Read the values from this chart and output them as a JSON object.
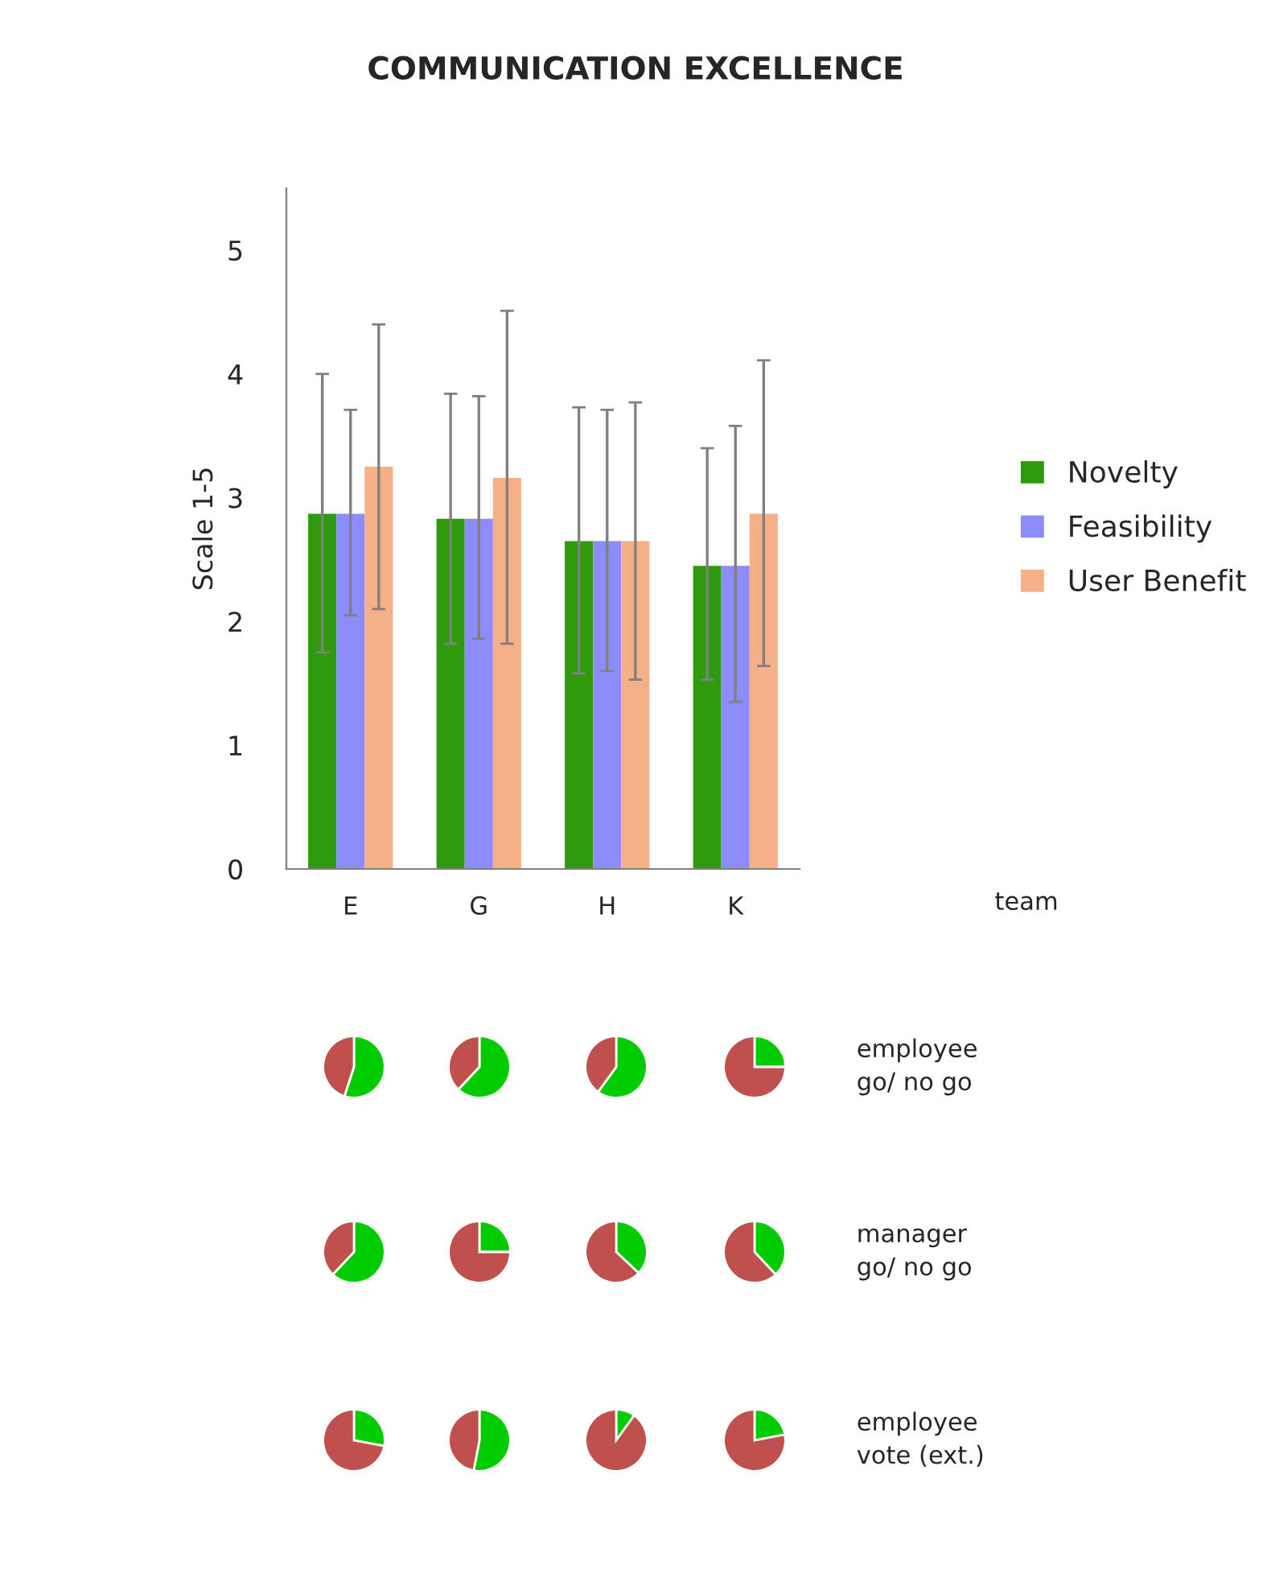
{
  "chart_data": [
    {
      "type": "bar",
      "title": "COMMUNICATION EXCELLENCE",
      "ylabel": "Scale 1-5",
      "categories": [
        "E",
        "G",
        "H",
        "K"
      ],
      "ylim": [
        0,
        5.5
      ],
      "yticks": [
        0,
        1,
        2,
        3,
        4,
        5
      ],
      "legend": "right",
      "grid": false,
      "annotations": [
        "team"
      ],
      "series": [
        {
          "name": "Novelty",
          "color": "#2e9a0c",
          "values": [
            2.87,
            2.83,
            2.65,
            2.45
          ],
          "errors": [
            [
              1.75,
              4.0
            ],
            [
              1.82,
              3.84
            ],
            [
              1.58,
              3.73
            ],
            [
              1.53,
              3.4
            ]
          ]
        },
        {
          "name": "Feasibility",
          "color": "#8c8cfc",
          "values": [
            2.87,
            2.83,
            2.65,
            2.45
          ],
          "errors": [
            [
              2.05,
              3.71
            ],
            [
              1.86,
              3.82
            ],
            [
              1.6,
              3.71
            ],
            [
              1.35,
              3.58
            ]
          ]
        },
        {
          "name": "User Benefit",
          "color": "#f5b088",
          "values": [
            3.25,
            3.16,
            2.65,
            2.87
          ],
          "errors": [
            [
              2.1,
              4.4
            ],
            [
              1.82,
              4.51
            ],
            [
              1.53,
              3.77
            ],
            [
              1.64,
              4.11
            ]
          ]
        }
      ]
    },
    {
      "type": "pie",
      "categories": [
        null,
        null
      ],
      "values": [
        55,
        45
      ],
      "colors": [
        "#00cc00",
        "#c0504d"
      ]
    },
    {
      "type": "pie",
      "categories": [
        null,
        null
      ],
      "values": [
        62,
        38
      ],
      "colors": [
        "#00cc00",
        "#c0504d"
      ]
    },
    {
      "type": "pie",
      "categories": [
        null,
        null
      ],
      "values": [
        60,
        40
      ],
      "colors": [
        "#00cc00",
        "#c0504d"
      ]
    },
    {
      "type": "pie",
      "categories": [
        null,
        null
      ],
      "values": [
        25,
        75
      ],
      "colors": [
        "#00cc00",
        "#c0504d"
      ],
      "annotations": [
        "employee\ngo/ no go"
      ]
    },
    {
      "type": "pie",
      "categories": [
        null,
        null
      ],
      "values": [
        62,
        38
      ],
      "colors": [
        "#00cc00",
        "#c0504d"
      ]
    },
    {
      "type": "pie",
      "categories": [
        null,
        null
      ],
      "values": [
        25,
        75
      ],
      "colors": [
        "#00cc00",
        "#c0504d"
      ]
    },
    {
      "type": "pie",
      "categories": [
        null,
        null
      ],
      "values": [
        37,
        63
      ],
      "colors": [
        "#00cc00",
        "#c0504d"
      ]
    },
    {
      "type": "pie",
      "categories": [
        null,
        null
      ],
      "values": [
        38,
        62
      ],
      "colors": [
        "#00cc00",
        "#c0504d"
      ],
      "annotations": [
        "manager\ngo/ no go"
      ]
    },
    {
      "type": "pie",
      "categories": [
        null,
        null
      ],
      "values": [
        28,
        72
      ],
      "colors": [
        "#00cc00",
        "#c0504d"
      ]
    },
    {
      "type": "pie",
      "categories": [
        null,
        null
      ],
      "values": [
        53,
        47
      ],
      "colors": [
        "#00cc00",
        "#c0504d"
      ]
    },
    {
      "type": "pie",
      "categories": [
        null,
        null
      ],
      "values": [
        10,
        90
      ],
      "colors": [
        "#00cc00",
        "#c0504d"
      ]
    },
    {
      "type": "pie",
      "categories": [
        null,
        null
      ],
      "values": [
        22,
        78
      ],
      "colors": [
        "#00cc00",
        "#c0504d"
      ],
      "annotations": [
        "employee\nvote (ext.)"
      ]
    }
  ]
}
